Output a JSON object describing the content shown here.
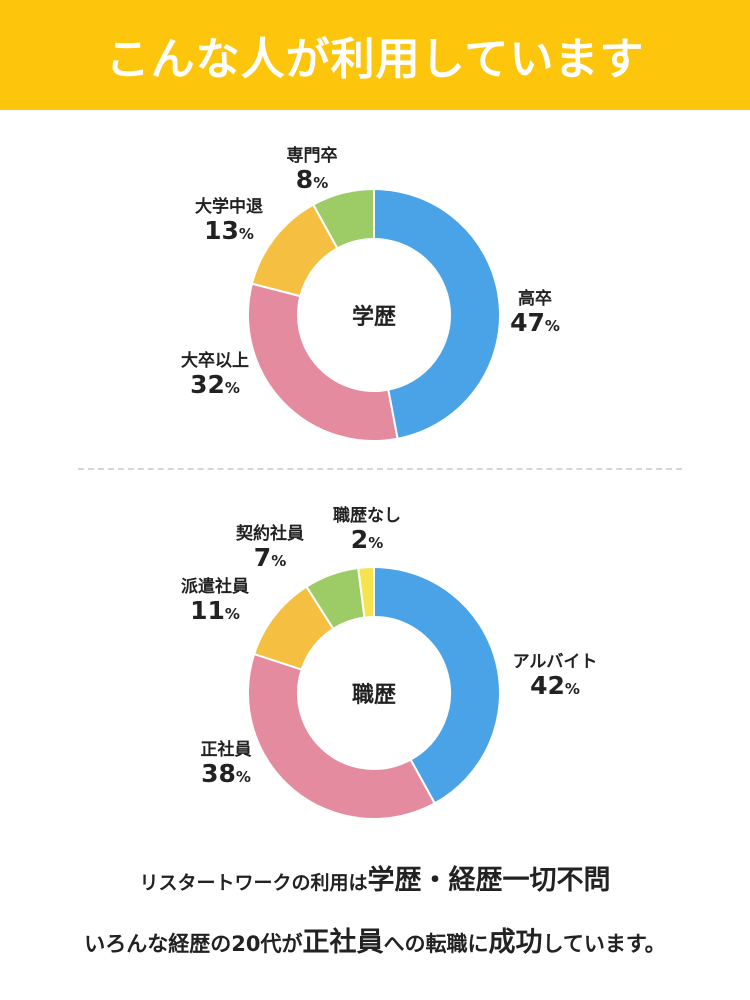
{
  "header": {
    "title": "こんな人が利用しています"
  },
  "chart_data": [
    {
      "type": "pie",
      "center_label": "学歴",
      "categories": [
        "高卒",
        "大卒以上",
        "大学中退",
        "専門卒"
      ],
      "values": [
        47,
        32,
        13,
        8
      ],
      "unit": "%",
      "colors": [
        "#4aa3e6",
        "#e48ba0",
        "#f5bf42",
        "#9dcc66"
      ]
    },
    {
      "type": "pie",
      "center_label": "職歴",
      "categories": [
        "アルバイト",
        "正社員",
        "派遣社員",
        "契約社員",
        "職歴なし"
      ],
      "values": [
        42,
        38,
        11,
        7,
        2
      ],
      "unit": "%",
      "colors": [
        "#4aa3e6",
        "#e48ba0",
        "#f5bf42",
        "#9dcc66",
        "#f7e34d"
      ]
    }
  ],
  "footer": {
    "line1_pre": "リスタートワークの利用は",
    "line1_em": "学歴・経歴一切不問",
    "line2_pre": "いろんな経歴の20代が",
    "line2_em1": "正社員",
    "line2_mid": "への転職に",
    "line2_em2": "成功",
    "line2_post": "しています。"
  }
}
